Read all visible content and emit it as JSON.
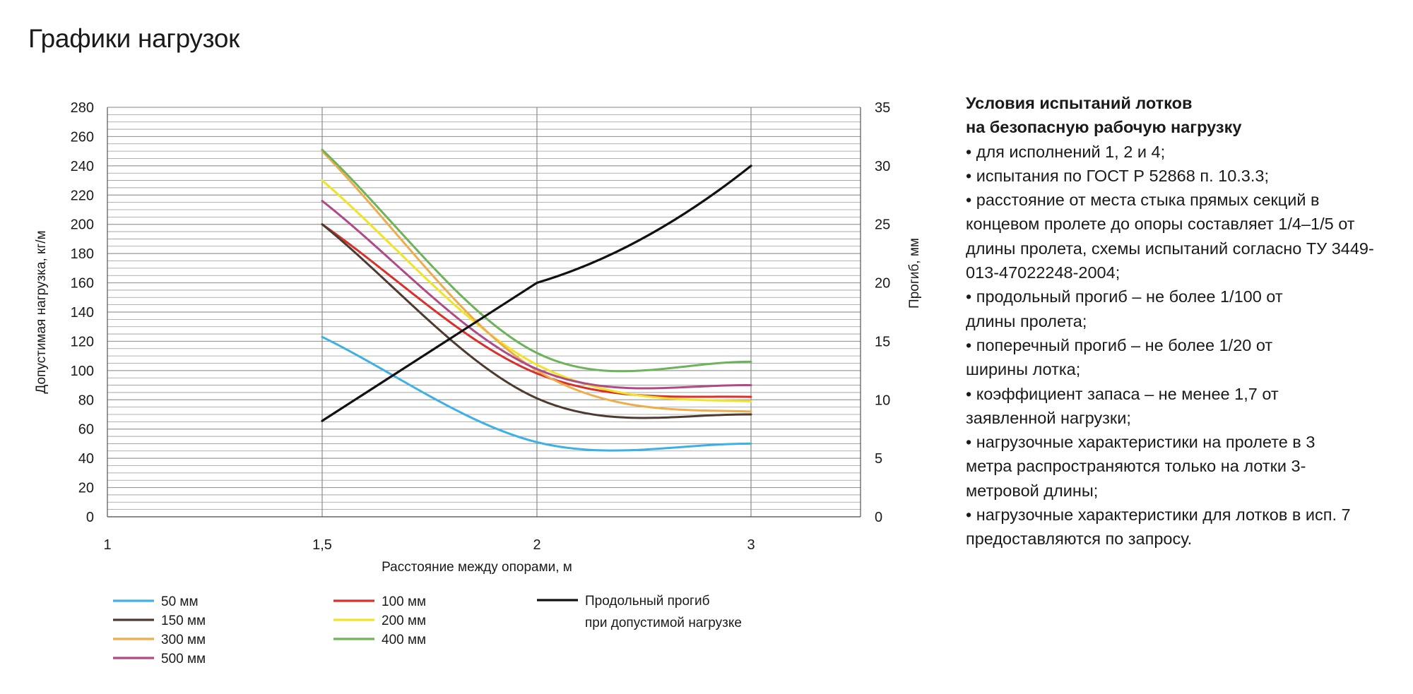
{
  "title": "Графики нагрузок",
  "chart_data": {
    "type": "line",
    "x": [
      1.5,
      2,
      3
    ],
    "xlabel": "Расстояние между опорами, м",
    "ylabel": "Допустимая нагрузка, кг/м",
    "y2label": "Прогиб, мм",
    "xlim": [
      1,
      3.5
    ],
    "xticks": [
      "1",
      "1,5",
      "2",
      "3"
    ],
    "ylim": [
      0,
      280
    ],
    "yticks": [
      0,
      20,
      40,
      60,
      80,
      100,
      120,
      140,
      160,
      180,
      200,
      220,
      240,
      260,
      280
    ],
    "y2lim": [
      0,
      35
    ],
    "y2ticks": [
      0,
      5,
      10,
      15,
      20,
      25,
      30,
      35
    ],
    "grid": true,
    "legend_position": "bottom",
    "series": [
      {
        "name": "50 мм",
        "color": "#3db1e6",
        "axis": "left",
        "values": [
          123,
          51,
          50
        ]
      },
      {
        "name": "100 мм",
        "color": "#d9302b",
        "axis": "left",
        "values": [
          200,
          98,
          82
        ]
      },
      {
        "name": "150 мм",
        "color": "#4e3b30",
        "axis": "left",
        "values": [
          200,
          81,
          70
        ]
      },
      {
        "name": "200 мм",
        "color": "#f0e428",
        "axis": "left",
        "values": [
          230,
          104,
          79
        ]
      },
      {
        "name": "300 мм",
        "color": "#eeac4b",
        "axis": "left",
        "values": [
          250,
          100,
          72
        ]
      },
      {
        "name": "400 мм",
        "color": "#6db35a",
        "axis": "left",
        "values": [
          251,
          112,
          106
        ]
      },
      {
        "name": "500 мм",
        "color": "#b04a86",
        "axis": "left",
        "values": [
          216,
          101,
          90
        ]
      },
      {
        "name": "Продольный прогиб при допустимой нагрузке",
        "legend_lines": [
          "Продольный прогиб",
          "при допустимой нагрузке"
        ],
        "color": "#111111",
        "axis": "right",
        "values": [
          8.2,
          20,
          30
        ]
      }
    ]
  },
  "notes": {
    "heading_lines": [
      "Условия испытаний лотков",
      "на безопасную рабочую нагрузку"
    ],
    "items": [
      "• для исполнений 1, 2 и 4;",
      "• испытания по ГОСТ Р 52868 п. 10.3.3;",
      "• расстояние от места стыка прямых секций в концевом пролете до опоры составляет 1/4–1/5 от длины пролета, схемы испытаний согласно ТУ 3449-013-47022248-2004;",
      "• продольный прогиб – не более 1/100 от длины пролета;",
      "• поперечный прогиб – не более 1/20 от ширины лотка;",
      "• коэффициент запаса – не менее 1,7 от заявленной нагрузки;",
      "• нагрузочные характеристики на пролете в 3 метра распространяются только на лотки 3-метровой длины;",
      "• нагрузочные характеристики для лотков в исп. 7 предоставляются по запросу."
    ]
  }
}
